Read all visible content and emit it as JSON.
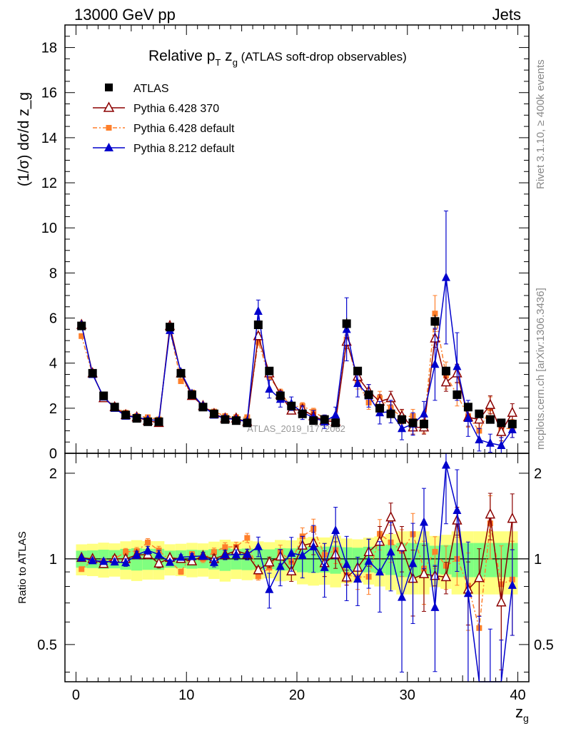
{
  "header": {
    "energy": "13000 GeV pp",
    "category": "Jets",
    "title_main": "Relative p",
    "title_sub1": "T",
    "title_mid": " z",
    "title_sub2": "g",
    "title_suffix": " (ATLAS soft-drop observables)",
    "side_rivet": "Rivet 3.1.10, ≥ 400k events",
    "side_mcplots": "mcplots.cern.ch [arXiv:1306.3436]",
    "watermark": "ATLAS_2019_I1772062"
  },
  "chart_data": {
    "type": "scatter",
    "title": "Relative pT zg (ATLAS soft-drop observables)",
    "xlabel": "z_g",
    "ylabel": "(1/σ) dσ/d z_g",
    "ratio_ylabel": "Ratio to ATLAS",
    "xlim": [
      -1,
      41
    ],
    "ylim": [
      0,
      19
    ],
    "ratio_ylim": [
      0.37,
      2.35
    ],
    "xticks": [
      "0",
      "10",
      "20",
      "30",
      "40"
    ],
    "yticks": [
      "0",
      "2",
      "4",
      "6",
      "8",
      "10",
      "12",
      "14",
      "16",
      "18"
    ],
    "ratio_yticks": [
      "0.5",
      "1",
      "2"
    ],
    "legend": [
      "ATLAS",
      "Pythia 6.428 370",
      "Pythia 6.428 default",
      "Pythia 8.212 default"
    ],
    "x": [
      0.5,
      1.5,
      2.5,
      3.5,
      4.5,
      5.5,
      6.5,
      7.5,
      8.5,
      9.5,
      10.5,
      11.5,
      12.5,
      13.5,
      14.5,
      15.5,
      16.5,
      17.5,
      18.5,
      19.5,
      20.5,
      21.5,
      22.5,
      23.5,
      24.5,
      25.5,
      26.5,
      27.5,
      28.5,
      29.5,
      30.5,
      31.5,
      32.5,
      33.5,
      34.5,
      35.5,
      36.5,
      37.5,
      38.5,
      39.5
    ],
    "series": [
      {
        "name": "ATLAS",
        "color": "#000000",
        "marker": "square",
        "values": [
          5.65,
          3.55,
          2.55,
          2.05,
          1.7,
          1.55,
          1.4,
          1.4,
          5.6,
          3.55,
          2.6,
          2.05,
          1.75,
          1.5,
          1.45,
          1.35,
          5.7,
          3.65,
          2.55,
          2.1,
          1.75,
          1.45,
          1.5,
          1.35,
          5.75,
          3.65,
          2.6,
          2.0,
          1.75,
          1.5,
          1.35,
          1.3,
          5.85,
          3.65,
          2.6,
          2.05,
          1.75,
          1.5,
          1.35,
          1.3
        ],
        "errors": [
          0.15,
          0.1,
          0.08,
          0.06,
          0.06,
          0.06,
          0.05,
          0.05,
          0.15,
          0.1,
          0.08,
          0.06,
          0.06,
          0.06,
          0.05,
          0.05,
          0.2,
          0.12,
          0.1,
          0.08,
          0.08,
          0.07,
          0.07,
          0.07,
          0.25,
          0.15,
          0.12,
          0.1,
          0.1,
          0.1,
          0.1,
          0.1,
          0.3,
          0.2,
          0.18,
          0.15,
          0.15,
          0.14,
          0.14,
          0.14
        ]
      },
      {
        "name": "Pythia 6.428 370",
        "color": "#8b0000",
        "marker": "triangle-open",
        "values": [
          5.7,
          3.55,
          2.45,
          2.05,
          1.7,
          1.6,
          1.45,
          1.35,
          5.65,
          3.55,
          2.55,
          2.1,
          1.75,
          1.55,
          1.55,
          1.4,
          5.2,
          3.55,
          2.6,
          1.9,
          1.95,
          1.65,
          1.45,
          1.4,
          4.95,
          3.4,
          2.75,
          2.3,
          2.45,
          1.65,
          1.15,
          1.15,
          5.1,
          3.15,
          3.55,
          1.6,
          1.5,
          2.15,
          0.95,
          1.8
        ],
        "errors": [
          0.05,
          0.05,
          0.05,
          0.05,
          0.05,
          0.05,
          0.05,
          0.05,
          0.1,
          0.07,
          0.06,
          0.06,
          0.06,
          0.06,
          0.06,
          0.06,
          0.15,
          0.15,
          0.15,
          0.15,
          0.15,
          0.15,
          0.15,
          0.15,
          0.3,
          0.3,
          0.3,
          0.3,
          0.3,
          0.3,
          0.3,
          0.3,
          0.4,
          0.4,
          0.4,
          0.4,
          0.4,
          0.4,
          0.4,
          0.4
        ]
      },
      {
        "name": "Pythia 6.428 default",
        "color": "#ff7f2a",
        "marker": "square-small",
        "values": [
          5.2,
          3.5,
          2.5,
          2.05,
          1.8,
          1.65,
          1.6,
          1.5,
          5.5,
          3.2,
          2.7,
          2.05,
          1.85,
          1.65,
          1.6,
          1.6,
          4.95,
          3.4,
          2.7,
          2.05,
          2.1,
          1.85,
          1.55,
          1.45,
          5.05,
          3.15,
          2.25,
          2.45,
          2.0,
          1.6,
          1.65,
          1.2,
          6.2,
          3.45,
          2.6,
          1.65,
          1.0,
          2.0,
          1.1,
          1.1
        ],
        "errors": [
          0.05,
          0.05,
          0.05,
          0.05,
          0.05,
          0.05,
          0.05,
          0.05,
          0.1,
          0.07,
          0.06,
          0.06,
          0.06,
          0.06,
          0.06,
          0.06,
          0.15,
          0.15,
          0.15,
          0.15,
          0.15,
          0.15,
          0.15,
          0.15,
          0.3,
          0.3,
          0.3,
          0.3,
          0.3,
          0.3,
          0.3,
          0.3,
          0.8,
          0.6,
          0.5,
          0.5,
          0.5,
          0.5,
          0.4,
          0.4
        ]
      },
      {
        "name": "Pythia 8.212 default",
        "color": "#0000cc",
        "marker": "triangle",
        "values": [
          5.7,
          3.5,
          2.5,
          2.0,
          1.65,
          1.6,
          1.5,
          1.45,
          5.45,
          3.6,
          2.65,
          2.1,
          1.7,
          1.55,
          1.5,
          1.4,
          6.3,
          2.85,
          2.4,
          2.2,
          1.8,
          1.6,
          1.4,
          1.7,
          5.5,
          3.1,
          2.55,
          1.8,
          1.85,
          1.1,
          1.3,
          1.75,
          3.95,
          7.8,
          3.85,
          1.55,
          0.6,
          0.45,
          0.35,
          1.05
        ],
        "errors": [
          0.05,
          0.05,
          0.05,
          0.05,
          0.05,
          0.05,
          0.05,
          0.05,
          0.1,
          0.07,
          0.06,
          0.06,
          0.06,
          0.06,
          0.06,
          0.06,
          0.5,
          0.4,
          0.35,
          0.3,
          0.3,
          0.3,
          0.3,
          0.35,
          1.4,
          0.6,
          0.5,
          0.5,
          0.5,
          0.5,
          0.5,
          0.55,
          1.6,
          2.95,
          1.5,
          0.8,
          0.5,
          0.4,
          0.35,
          0.35
        ]
      }
    ]
  },
  "style": {
    "band_inner": "#80ff80",
    "band_outer": "#ffff80"
  }
}
